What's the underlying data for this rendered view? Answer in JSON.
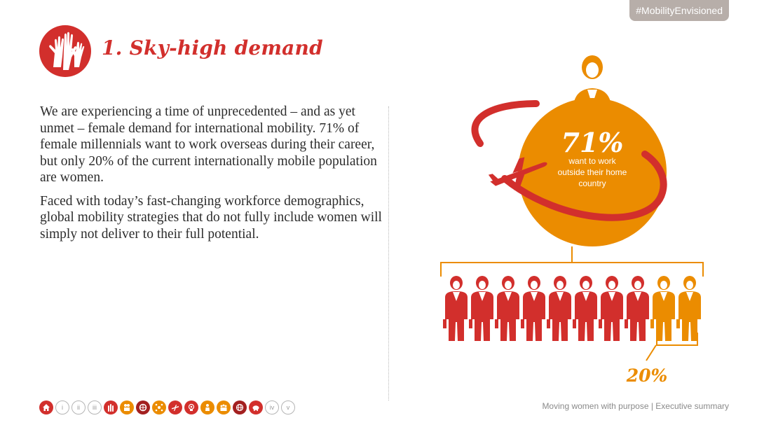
{
  "hashtag": "#MobilityEnvisioned",
  "title": "1. Sky-high demand",
  "paragraphs": [
    "We are experiencing a time of unprecedented – and as yet unmet – female demand for international mobility. 71% of female millennials want to work overseas during their career, but only 20% of the current internationally mobile population are women.",
    "Faced with today’s fast-changing workforce demographics, global mobility strategies that do not fully include women will simply not deliver to their full potential."
  ],
  "infographic": {
    "big_stat": "71%",
    "big_stat_lines": [
      "want to work",
      "outside their home",
      "country"
    ],
    "small_stat": "20%",
    "figures_total": 10,
    "figures_women": 2
  },
  "nav": {
    "items": [
      {
        "name": "nav-home",
        "icon": "home-icon",
        "style": "red",
        "label": ""
      },
      {
        "name": "nav-i",
        "icon": "",
        "style": "outline",
        "label": "i"
      },
      {
        "name": "nav-ii",
        "icon": "",
        "style": "outline",
        "label": "ii"
      },
      {
        "name": "nav-iii",
        "icon": "",
        "style": "outline",
        "label": "iii"
      },
      {
        "name": "nav-section-1",
        "icon": "hands-icon",
        "style": "red",
        "label": ""
      },
      {
        "name": "nav-section-2",
        "icon": "people-icon",
        "style": "orange",
        "label": ""
      },
      {
        "name": "nav-section-3",
        "icon": "globe-icon",
        "style": "dark",
        "label": ""
      },
      {
        "name": "nav-section-4",
        "icon": "network-icon",
        "style": "orange",
        "label": ""
      },
      {
        "name": "nav-section-5",
        "icon": "plane-icon",
        "style": "red",
        "label": ""
      },
      {
        "name": "nav-section-6",
        "icon": "family-icon",
        "style": "red",
        "label": ""
      },
      {
        "name": "nav-section-7",
        "icon": "person-icon",
        "style": "orange",
        "label": ""
      },
      {
        "name": "nav-section-8",
        "icon": "group-icon",
        "style": "orange",
        "label": ""
      },
      {
        "name": "nav-section-9",
        "icon": "globe-grid-icon",
        "style": "dark",
        "label": ""
      },
      {
        "name": "nav-section-10",
        "icon": "piggy-bank-icon",
        "style": "red",
        "label": ""
      },
      {
        "name": "nav-iv",
        "icon": "",
        "style": "outline",
        "label": "iv"
      },
      {
        "name": "nav-v",
        "icon": "",
        "style": "outline",
        "label": "v"
      }
    ]
  },
  "footer": "Moving women with purpose | Executive summary",
  "colors": {
    "red": "#d22f2c",
    "orange": "#eb8c00",
    "dark_red": "#a32020",
    "tag_bg": "#b7aea9"
  }
}
